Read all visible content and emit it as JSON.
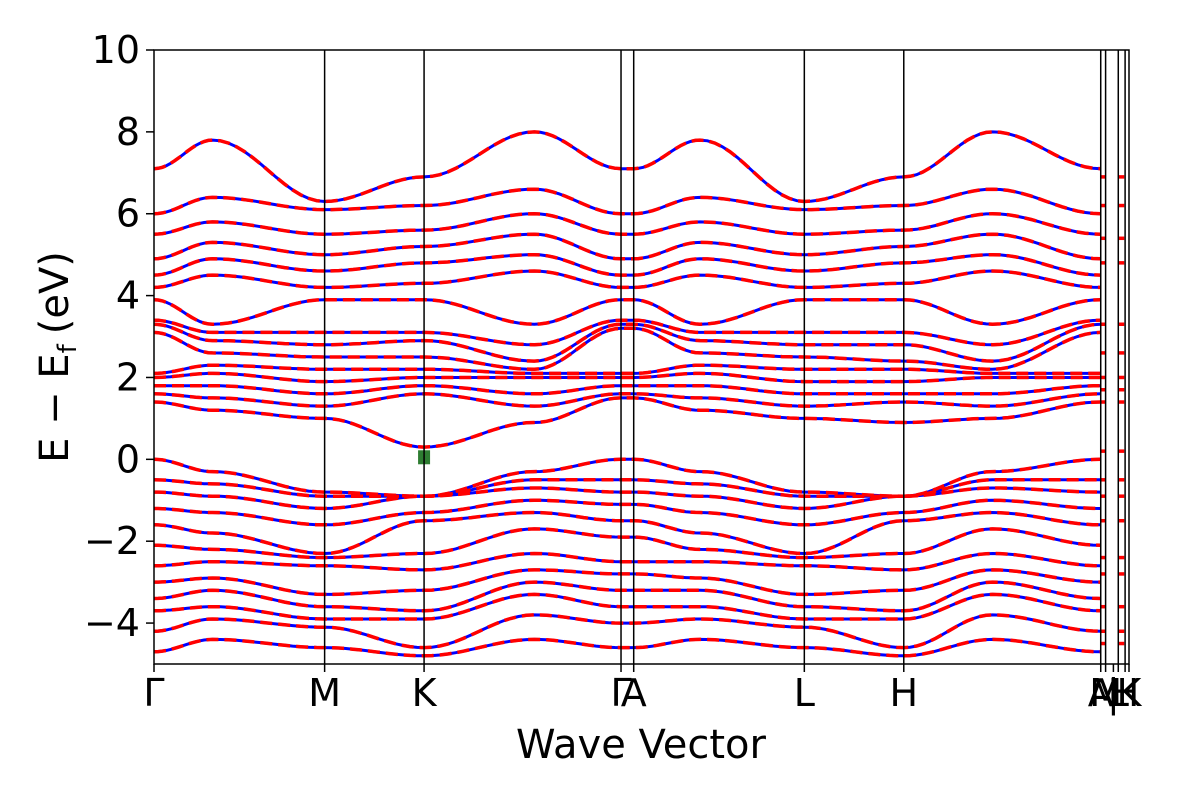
{
  "chart_data": {
    "type": "line",
    "xlabel": "Wave Vector",
    "ylabel": "E − E",
    "ylabel_subscript": "f",
    "ylabel_unit": "(eV)",
    "ylim": [
      -5,
      10
    ],
    "yticks": [
      -4,
      -2,
      0,
      2,
      4,
      6,
      8,
      10
    ],
    "ytick_labels": [
      "−4",
      "−2",
      "0",
      "2",
      "4",
      "6",
      "8",
      "10"
    ],
    "xlim": [
      0,
      10.0
    ],
    "kpoints": [
      {
        "label": "Γ",
        "x": 0.0
      },
      {
        "label": "M",
        "x": 1.75
      },
      {
        "label": "K",
        "x": 2.77
      },
      {
        "label": "Γ",
        "x": 4.79
      },
      {
        "label": "A",
        "x": 4.92
      },
      {
        "label": "L",
        "x": 6.67
      },
      {
        "label": "H",
        "x": 7.69
      },
      {
        "label": "A",
        "x": 9.71
      },
      {
        "label": "M",
        "x": 9.76
      },
      {
        "label": "|",
        "x": 9.84
      },
      {
        "label": "L",
        "x": 9.89
      },
      {
        "label": "H",
        "x": 9.96
      },
      {
        "label": "K",
        "x": 10.0
      }
    ],
    "grid": false,
    "series": [
      {
        "color": "#0000ff",
        "style": "solid",
        "knot_x": [
          0,
          0.6,
          1.75,
          2.77,
          3.9,
          4.79,
          4.92,
          5.6,
          6.67,
          7.69,
          8.6,
          9.71
        ],
        "bands": [
          [
            -4.7,
            -4.4,
            -4.6,
            -4.8,
            -4.4,
            -4.6,
            -4.6,
            -4.4,
            -4.6,
            -4.8,
            -4.4,
            -4.7
          ],
          [
            -4.2,
            -3.9,
            -4.1,
            -4.6,
            -3.8,
            -4.0,
            -4.0,
            -3.9,
            -4.1,
            -4.6,
            -3.8,
            -4.2
          ],
          [
            -3.7,
            -3.6,
            -3.9,
            -3.9,
            -3.3,
            -3.6,
            -3.6,
            -3.6,
            -3.9,
            -3.9,
            -3.3,
            -3.7
          ],
          [
            -3.4,
            -3.2,
            -3.6,
            -3.7,
            -3.0,
            -3.2,
            -3.2,
            -3.2,
            -3.6,
            -3.7,
            -3.0,
            -3.4
          ],
          [
            -3.0,
            -2.9,
            -3.3,
            -3.2,
            -2.7,
            -2.8,
            -2.8,
            -2.9,
            -3.3,
            -3.2,
            -2.7,
            -3.0
          ],
          [
            -2.6,
            -2.5,
            -2.6,
            -2.7,
            -2.3,
            -2.5,
            -2.5,
            -2.5,
            -2.6,
            -2.7,
            -2.3,
            -2.6
          ],
          [
            -2.1,
            -2.2,
            -2.4,
            -2.3,
            -1.7,
            -1.9,
            -1.9,
            -2.2,
            -2.4,
            -2.3,
            -1.7,
            -2.1
          ],
          [
            -1.6,
            -1.8,
            -2.3,
            -1.5,
            -1.3,
            -1.5,
            -1.5,
            -1.8,
            -2.3,
            -1.5,
            -1.3,
            -1.6
          ],
          [
            -1.2,
            -1.3,
            -1.6,
            -1.3,
            -1.0,
            -1.1,
            -1.1,
            -1.3,
            -1.6,
            -1.3,
            -1.0,
            -1.2
          ],
          [
            -0.8,
            -0.9,
            -1.2,
            -0.9,
            -0.7,
            -0.8,
            -0.8,
            -0.9,
            -1.2,
            -0.9,
            -0.7,
            -0.8
          ],
          [
            -0.5,
            -0.6,
            -0.9,
            -0.9,
            -0.5,
            -0.5,
            -0.5,
            -0.6,
            -0.9,
            -0.9,
            -0.5,
            -0.5
          ],
          [
            0.0,
            -0.3,
            -0.8,
            -0.9,
            -0.3,
            0.0,
            0.0,
            -0.3,
            -0.8,
            -0.9,
            -0.3,
            0.0
          ],
          [
            1.4,
            1.2,
            1.0,
            0.3,
            0.9,
            1.5,
            1.5,
            1.2,
            1.0,
            0.9,
            1.0,
            1.4
          ],
          [
            1.6,
            1.5,
            1.3,
            1.6,
            1.3,
            1.6,
            1.6,
            1.5,
            1.3,
            1.4,
            1.3,
            1.6
          ],
          [
            1.8,
            1.8,
            1.6,
            1.8,
            1.6,
            1.8,
            1.8,
            1.8,
            1.6,
            1.6,
            1.6,
            1.8
          ],
          [
            2.0,
            2.1,
            1.9,
            2.0,
            2.0,
            2.0,
            2.0,
            2.1,
            1.9,
            1.9,
            2.0,
            2.0
          ],
          [
            2.1,
            2.3,
            2.2,
            2.2,
            2.1,
            2.1,
            2.1,
            2.3,
            2.2,
            2.2,
            2.1,
            2.1
          ],
          [
            3.1,
            2.6,
            2.5,
            2.5,
            2.2,
            3.2,
            3.2,
            2.6,
            2.5,
            2.4,
            2.2,
            3.1
          ],
          [
            3.3,
            2.9,
            2.8,
            2.9,
            2.4,
            3.3,
            3.3,
            2.9,
            2.8,
            2.8,
            2.4,
            3.3
          ],
          [
            3.4,
            3.1,
            3.1,
            3.1,
            2.8,
            3.4,
            3.4,
            3.1,
            3.1,
            3.1,
            2.8,
            3.4
          ],
          [
            3.9,
            3.3,
            3.9,
            3.9,
            3.3,
            3.9,
            3.9,
            3.3,
            3.9,
            3.9,
            3.3,
            3.9
          ],
          [
            4.2,
            4.5,
            4.2,
            4.3,
            4.6,
            4.2,
            4.2,
            4.5,
            4.2,
            4.3,
            4.6,
            4.2
          ],
          [
            4.5,
            4.9,
            4.6,
            4.8,
            5.0,
            4.5,
            4.5,
            4.9,
            4.6,
            4.8,
            5.0,
            4.5
          ],
          [
            4.9,
            5.3,
            5.0,
            5.2,
            5.5,
            4.9,
            4.9,
            5.3,
            5.0,
            5.2,
            5.5,
            4.9
          ],
          [
            5.5,
            5.8,
            5.5,
            5.6,
            6.0,
            5.5,
            5.5,
            5.8,
            5.5,
            5.6,
            6.0,
            5.5
          ],
          [
            6.0,
            6.4,
            6.1,
            6.2,
            6.6,
            6.0,
            6.0,
            6.4,
            6.1,
            6.2,
            6.6,
            6.0
          ],
          [
            7.1,
            7.8,
            6.3,
            6.9,
            8.0,
            7.1,
            7.1,
            7.8,
            6.3,
            6.9,
            8.0,
            7.1
          ]
        ]
      },
      {
        "color": "#ff0000",
        "style": "dashed",
        "knot_x": [
          0,
          0.6,
          1.75,
          2.77,
          3.9,
          4.79,
          4.92,
          5.6,
          6.67,
          7.69,
          8.6,
          9.71
        ],
        "bands": [
          [
            -4.7,
            -4.4,
            -4.6,
            -4.8,
            -4.4,
            -4.6,
            -4.6,
            -4.4,
            -4.6,
            -4.8,
            -4.4,
            -4.7
          ],
          [
            -4.2,
            -3.9,
            -4.1,
            -4.6,
            -3.8,
            -4.0,
            -4.0,
            -3.9,
            -4.1,
            -4.6,
            -3.8,
            -4.2
          ],
          [
            -3.7,
            -3.6,
            -3.9,
            -3.9,
            -3.3,
            -3.6,
            -3.6,
            -3.6,
            -3.9,
            -3.9,
            -3.3,
            -3.7
          ],
          [
            -3.4,
            -3.2,
            -3.6,
            -3.7,
            -3.0,
            -3.2,
            -3.2,
            -3.2,
            -3.6,
            -3.7,
            -3.0,
            -3.4
          ],
          [
            -3.0,
            -2.9,
            -3.3,
            -3.2,
            -2.7,
            -2.8,
            -2.8,
            -2.9,
            -3.3,
            -3.2,
            -2.7,
            -3.0
          ],
          [
            -2.6,
            -2.5,
            -2.6,
            -2.7,
            -2.3,
            -2.5,
            -2.5,
            -2.5,
            -2.6,
            -2.7,
            -2.3,
            -2.6
          ],
          [
            -2.1,
            -2.2,
            -2.4,
            -2.3,
            -1.7,
            -1.9,
            -1.9,
            -2.2,
            -2.4,
            -2.3,
            -1.7,
            -2.1
          ],
          [
            -1.6,
            -1.8,
            -2.3,
            -1.5,
            -1.3,
            -1.5,
            -1.5,
            -1.8,
            -2.3,
            -1.5,
            -1.3,
            -1.6
          ],
          [
            -1.2,
            -1.3,
            -1.6,
            -1.3,
            -1.0,
            -1.1,
            -1.1,
            -1.3,
            -1.6,
            -1.3,
            -1.0,
            -1.2
          ],
          [
            -0.8,
            -0.9,
            -1.2,
            -0.9,
            -0.7,
            -0.8,
            -0.8,
            -0.9,
            -1.2,
            -0.9,
            -0.7,
            -0.8
          ],
          [
            -0.5,
            -0.6,
            -0.9,
            -0.9,
            -0.5,
            -0.5,
            -0.5,
            -0.6,
            -0.9,
            -0.9,
            -0.5,
            -0.5
          ],
          [
            0.0,
            -0.3,
            -0.8,
            -0.9,
            -0.3,
            0.0,
            0.0,
            -0.3,
            -0.8,
            -0.9,
            -0.3,
            0.0
          ],
          [
            1.4,
            1.2,
            1.0,
            0.3,
            0.9,
            1.5,
            1.5,
            1.2,
            1.0,
            0.9,
            1.0,
            1.4
          ],
          [
            1.6,
            1.5,
            1.3,
            1.6,
            1.3,
            1.6,
            1.6,
            1.5,
            1.3,
            1.4,
            1.3,
            1.6
          ],
          [
            1.8,
            1.8,
            1.6,
            1.8,
            1.6,
            1.8,
            1.8,
            1.8,
            1.6,
            1.6,
            1.6,
            1.8
          ],
          [
            2.0,
            2.1,
            1.9,
            2.0,
            2.0,
            2.0,
            2.0,
            2.1,
            1.9,
            1.9,
            2.0,
            2.0
          ],
          [
            2.1,
            2.3,
            2.2,
            2.2,
            2.1,
            2.1,
            2.1,
            2.3,
            2.2,
            2.2,
            2.1,
            2.1
          ],
          [
            3.1,
            2.6,
            2.5,
            2.5,
            2.2,
            3.2,
            3.2,
            2.6,
            2.5,
            2.4,
            2.2,
            3.1
          ],
          [
            3.3,
            2.9,
            2.8,
            2.9,
            2.4,
            3.3,
            3.3,
            2.9,
            2.8,
            2.8,
            2.4,
            3.3
          ],
          [
            3.4,
            3.1,
            3.1,
            3.1,
            2.8,
            3.4,
            3.4,
            3.1,
            3.1,
            3.1,
            2.8,
            3.4
          ],
          [
            3.9,
            3.3,
            3.9,
            3.9,
            3.3,
            3.9,
            3.9,
            3.3,
            3.9,
            3.9,
            3.3,
            3.9
          ],
          [
            4.2,
            4.5,
            4.2,
            4.3,
            4.6,
            4.2,
            4.2,
            4.5,
            4.2,
            4.3,
            4.6,
            4.2
          ],
          [
            4.5,
            4.9,
            4.6,
            4.8,
            5.0,
            4.5,
            4.5,
            4.9,
            4.6,
            4.8,
            5.0,
            4.5
          ],
          [
            4.9,
            5.3,
            5.0,
            5.2,
            5.5,
            4.9,
            4.9,
            5.3,
            5.0,
            5.2,
            5.5,
            4.9
          ],
          [
            5.5,
            5.8,
            5.5,
            5.6,
            6.0,
            5.5,
            5.5,
            5.8,
            5.5,
            5.6,
            6.0,
            5.5
          ],
          [
            6.0,
            6.4,
            6.1,
            6.2,
            6.6,
            6.0,
            6.0,
            6.4,
            6.1,
            6.2,
            6.6,
            6.0
          ],
          [
            7.1,
            7.8,
            6.3,
            6.9,
            8.0,
            7.1,
            7.1,
            7.8,
            6.3,
            6.9,
            8.0,
            7.1
          ]
        ]
      }
    ],
    "tail_segments": {
      "x_start": 9.71,
      "x_end": 9.76,
      "x2_start": 9.89,
      "x2_end": 9.96,
      "color": "#ff0000",
      "levels": [
        -4.5,
        -4.2,
        -3.6,
        -2.8,
        -2.4,
        -1.5,
        -0.9,
        -0.5,
        0.2,
        1.4,
        1.7,
        2.0,
        2.6,
        3.3,
        4.8,
        5.4,
        6.2,
        6.9
      ]
    },
    "marker": {
      "x": 2.77,
      "y": 0.05,
      "color": "#2e7d32"
    }
  }
}
